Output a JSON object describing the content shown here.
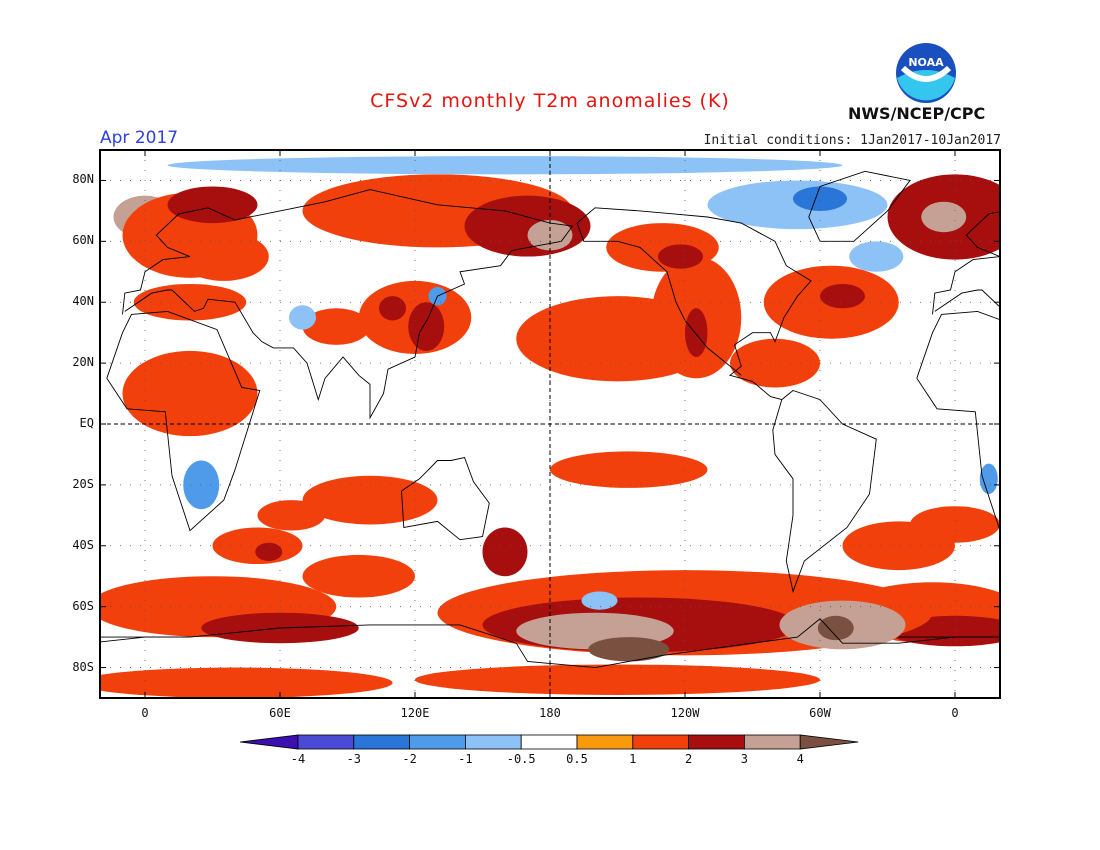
{
  "header": {
    "title": "CFSv2 monthly T2m anomalies (K)",
    "title_color": "#e8130f",
    "month": "Apr 2017",
    "month_color": "#2d3fe0",
    "initial_conditions": "Initial conditions: 1Jan2017-10Jan2017",
    "agency": "NWS/NCEP/CPC",
    "logo_text": "NOAA",
    "logo_icon": "noaa-logo"
  },
  "axes": {
    "lat_labels": [
      "80N",
      "60N",
      "40N",
      "20N",
      "EQ",
      "20S",
      "40S",
      "60S",
      "80S"
    ],
    "lon_labels": [
      "0",
      "60E",
      "120E",
      "180",
      "120W",
      "60W",
      "0"
    ]
  },
  "colorbar": {
    "labels": [
      "-4",
      "-3",
      "-2",
      "-1",
      "-0.5",
      "0.5",
      "1",
      "2",
      "3",
      "4"
    ],
    "colors": [
      "#3b0fb0",
      "#4a4ad6",
      "#2a75d8",
      "#4f9ae9",
      "#8cc2f5",
      "#ffffff",
      "#f99a0c",
      "#f2400d",
      "#a70e0e",
      "#c4a194",
      "#7a5040"
    ]
  },
  "chart_data": {
    "type": "heatmap",
    "variable": "2m temperature anomaly (K)",
    "lon_range": [
      -20,
      380
    ],
    "lat_range": [
      -90,
      90
    ],
    "legend_placement": "bottom",
    "regions": [
      {
        "lon": 130,
        "lat": 70,
        "rx": 60,
        "ry": 12,
        "anomaly": 1
      },
      {
        "lon": 170,
        "lat": 65,
        "rx": 28,
        "ry": 10,
        "anomaly": 2
      },
      {
        "lon": 180,
        "lat": 62,
        "rx": 10,
        "ry": 5,
        "anomaly": 3
      },
      {
        "lon": 360,
        "lat": 68,
        "rx": 30,
        "ry": 14,
        "anomaly": 2
      },
      {
        "lon": 355,
        "lat": 68,
        "rx": 10,
        "ry": 5,
        "anomaly": 3
      },
      {
        "lon": 0,
        "lat": 68,
        "rx": 14,
        "ry": 7,
        "anomaly": 3
      },
      {
        "lon": 20,
        "lat": 62,
        "rx": 30,
        "ry": 14,
        "anomaly": 1
      },
      {
        "lon": 30,
        "lat": 72,
        "rx": 20,
        "ry": 6,
        "anomaly": 2
      },
      {
        "lon": 35,
        "lat": 55,
        "rx": 20,
        "ry": 8,
        "anomaly": 1
      },
      {
        "lon": 20,
        "lat": 40,
        "rx": 25,
        "ry": 6,
        "anomaly": 1
      },
      {
        "lon": 120,
        "lat": 35,
        "rx": 25,
        "ry": 12,
        "anomaly": 1
      },
      {
        "lon": 125,
        "lat": 32,
        "rx": 8,
        "ry": 8,
        "anomaly": 2
      },
      {
        "lon": 110,
        "lat": 38,
        "rx": 6,
        "ry": 4,
        "anomaly": 2
      },
      {
        "lon": 85,
        "lat": 32,
        "rx": 15,
        "ry": 6,
        "anomaly": 1
      },
      {
        "lon": 20,
        "lat": 10,
        "rx": 30,
        "ry": 14,
        "anomaly": 1
      },
      {
        "lon": 210,
        "lat": 28,
        "rx": 45,
        "ry": 14,
        "anomaly": 1
      },
      {
        "lon": 245,
        "lat": 35,
        "rx": 20,
        "ry": 20,
        "anomaly": 1
      },
      {
        "lon": 245,
        "lat": 30,
        "rx": 5,
        "ry": 8,
        "anomaly": 2
      },
      {
        "lon": 230,
        "lat": 58,
        "rx": 25,
        "ry": 8,
        "anomaly": 1
      },
      {
        "lon": 238,
        "lat": 55,
        "rx": 10,
        "ry": 4,
        "anomaly": 2
      },
      {
        "lon": 305,
        "lat": 40,
        "rx": 30,
        "ry": 12,
        "anomaly": 1
      },
      {
        "lon": 310,
        "lat": 42,
        "rx": 10,
        "ry": 4,
        "anomaly": 2
      },
      {
        "lon": 280,
        "lat": 20,
        "rx": 20,
        "ry": 8,
        "anomaly": 1
      },
      {
        "lon": 215,
        "lat": -15,
        "rx": 35,
        "ry": 6,
        "anomaly": 1
      },
      {
        "lon": 100,
        "lat": -25,
        "rx": 30,
        "ry": 8,
        "anomaly": 1
      },
      {
        "lon": 65,
        "lat": -30,
        "rx": 15,
        "ry": 5,
        "anomaly": 1
      },
      {
        "lon": 50,
        "lat": -40,
        "rx": 20,
        "ry": 6,
        "anomaly": 1
      },
      {
        "lon": 55,
        "lat": -42,
        "rx": 6,
        "ry": 3,
        "anomaly": 2
      },
      {
        "lon": 335,
        "lat": -40,
        "rx": 25,
        "ry": 8,
        "anomaly": 1
      },
      {
        "lon": 360,
        "lat": -33,
        "rx": 20,
        "ry": 6,
        "anomaly": 1
      },
      {
        "lon": 160,
        "lat": -42,
        "rx": 10,
        "ry": 8,
        "anomaly": 2
      },
      {
        "lon": 95,
        "lat": -50,
        "rx": 25,
        "ry": 7,
        "anomaly": 1
      },
      {
        "lon": 30,
        "lat": -60,
        "rx": 55,
        "ry": 10,
        "anomaly": 1
      },
      {
        "lon": 60,
        "lat": -67,
        "rx": 35,
        "ry": 5,
        "anomaly": 2
      },
      {
        "lon": 350,
        "lat": -62,
        "rx": 40,
        "ry": 10,
        "anomaly": 1
      },
      {
        "lon": 360,
        "lat": -68,
        "rx": 30,
        "ry": 5,
        "anomaly": 2
      },
      {
        "lon": 240,
        "lat": -62,
        "rx": 110,
        "ry": 14,
        "anomaly": 1
      },
      {
        "lon": 220,
        "lat": -66,
        "rx": 70,
        "ry": 9,
        "anomaly": 2
      },
      {
        "lon": 200,
        "lat": -68,
        "rx": 35,
        "ry": 6,
        "anomaly": 3
      },
      {
        "lon": 215,
        "lat": -74,
        "rx": 18,
        "ry": 4,
        "anomaly": 4
      },
      {
        "lon": 310,
        "lat": -66,
        "rx": 28,
        "ry": 8,
        "anomaly": 3
      },
      {
        "lon": 307,
        "lat": -67,
        "rx": 8,
        "ry": 4,
        "anomaly": 4
      },
      {
        "lon": 40,
        "lat": -85,
        "rx": 70,
        "ry": 5,
        "anomaly": 1
      },
      {
        "lon": 210,
        "lat": -84,
        "rx": 90,
        "ry": 5,
        "anomaly": 1
      },
      {
        "lon": 25,
        "lat": -20,
        "rx": 8,
        "ry": 8,
        "anomaly": -1
      },
      {
        "lon": 375,
        "lat": -18,
        "rx": 4,
        "ry": 5,
        "anomaly": -1
      },
      {
        "lon": 290,
        "lat": 72,
        "rx": 40,
        "ry": 8,
        "anomaly": -0.5
      },
      {
        "lon": 300,
        "lat": 74,
        "rx": 12,
        "ry": 4,
        "anomaly": -2
      },
      {
        "lon": 325,
        "lat": 55,
        "rx": 12,
        "ry": 5,
        "anomaly": -0.5
      },
      {
        "lon": 160,
        "lat": 85,
        "rx": 150,
        "ry": 3,
        "anomaly": -0.5
      },
      {
        "lon": 130,
        "lat": 42,
        "rx": 4,
        "ry": 3,
        "anomaly": -1
      },
      {
        "lon": 70,
        "lat": 35,
        "rx": 6,
        "ry": 4,
        "anomaly": -0.5
      },
      {
        "lon": 202,
        "lat": -58,
        "rx": 8,
        "ry": 3,
        "anomaly": -0.5
      }
    ]
  }
}
